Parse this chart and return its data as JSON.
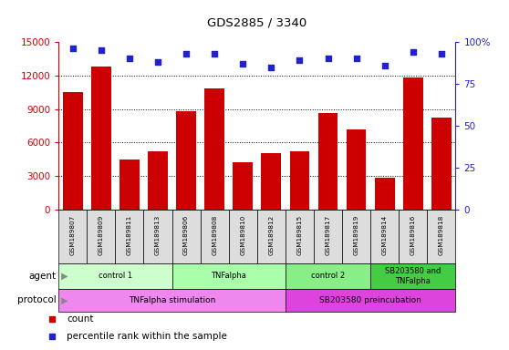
{
  "title": "GDS2885 / 3340",
  "samples": [
    "GSM189807",
    "GSM189809",
    "GSM189811",
    "GSM189813",
    "GSM189806",
    "GSM189808",
    "GSM189810",
    "GSM189812",
    "GSM189815",
    "GSM189817",
    "GSM189819",
    "GSM189814",
    "GSM189816",
    "GSM189818"
  ],
  "counts": [
    10500,
    12800,
    4500,
    5200,
    8800,
    10800,
    4200,
    5000,
    5200,
    8600,
    7200,
    2800,
    11800,
    8200
  ],
  "percentile_ranks": [
    96,
    95,
    90,
    88,
    93,
    93,
    87,
    85,
    89,
    90,
    90,
    86,
    94,
    93
  ],
  "bar_color": "#cc0000",
  "dot_color": "#2222cc",
  "ylim_left": [
    0,
    15000
  ],
  "ylim_right": [
    0,
    100
  ],
  "yticks_left": [
    0,
    3000,
    6000,
    9000,
    12000,
    15000
  ],
  "yticks_right": [
    0,
    25,
    50,
    75,
    100
  ],
  "agent_groups": [
    {
      "label": "control 1",
      "start": 0,
      "end": 4,
      "color": "#ccffcc"
    },
    {
      "label": "TNFalpha",
      "start": 4,
      "end": 8,
      "color": "#aaffaa"
    },
    {
      "label": "control 2",
      "start": 8,
      "end": 11,
      "color": "#88ee88"
    },
    {
      "label": "SB203580 and\nTNFalpha",
      "start": 11,
      "end": 14,
      "color": "#44cc44"
    }
  ],
  "protocol_groups": [
    {
      "label": "TNFalpha stimulation",
      "start": 0,
      "end": 8,
      "color": "#ee88ee"
    },
    {
      "label": "SB203580 preincubation",
      "start": 8,
      "end": 14,
      "color": "#dd44dd"
    }
  ],
  "agent_label": "agent",
  "protocol_label": "protocol",
  "legend_count_label": "count",
  "legend_pct_label": "percentile rank within the sample",
  "legend_count_color": "#cc0000",
  "legend_dot_color": "#2222cc",
  "tick_color_left": "#cc0000",
  "tick_color_right": "#2222cc",
  "sample_bg_color": "#dddddd",
  "grid_lines": [
    3000,
    6000,
    9000,
    12000
  ]
}
